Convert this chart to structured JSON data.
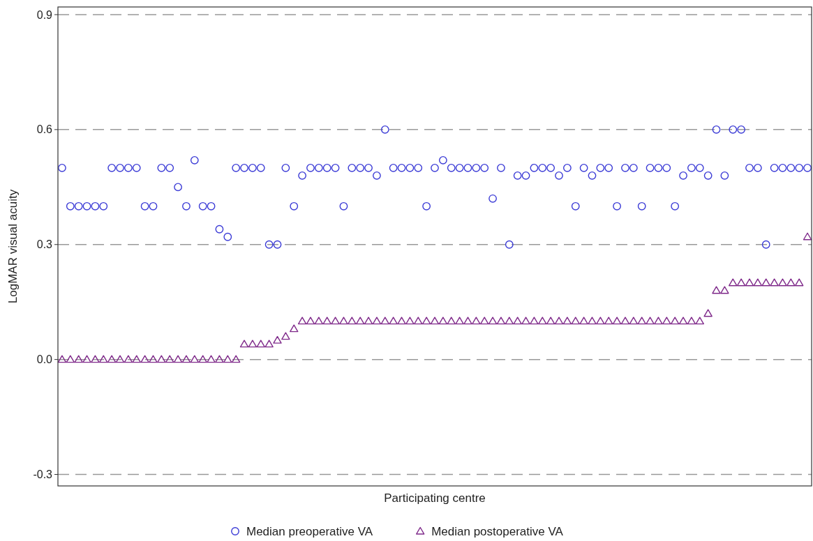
{
  "chart_data": {
    "type": "scatter",
    "xlabel": "Participating centre",
    "ylabel": "LogMAR visual acuity",
    "categories": [
      null,
      null,
      null,
      null,
      null,
      null,
      null,
      null,
      null,
      null,
      null,
      null,
      null,
      null,
      null,
      null,
      null,
      null,
      null,
      null,
      null,
      null,
      null,
      null,
      null,
      null,
      null,
      null,
      null,
      null,
      null,
      null,
      null,
      null,
      null,
      null,
      null,
      null,
      null,
      null,
      null,
      null,
      null,
      null,
      null,
      null,
      null,
      null,
      null,
      null,
      null,
      null,
      null,
      null,
      null,
      null,
      null,
      null,
      null,
      null,
      null,
      null,
      null,
      null,
      null,
      null,
      null,
      null,
      null,
      null,
      null,
      null,
      null,
      null,
      null,
      null,
      null,
      null,
      null,
      null,
      null,
      null,
      null,
      null,
      null,
      null,
      null,
      null,
      null,
      null,
      null
    ],
    "ylim": [
      -0.33,
      0.92
    ],
    "yticks": [
      -0.3,
      {
        "value": 0,
        "label": "0.0"
      },
      0.3,
      0.6,
      0.9
    ],
    "grid": "y",
    "legend": "bottom",
    "series": [
      {
        "name": "Median preoperative VA",
        "color": "#3b3bd6",
        "marker": "circle",
        "values": [
          0.5,
          0.4,
          0.4,
          0.4,
          0.4,
          0.4,
          0.5,
          0.5,
          0.5,
          0.5,
          0.4,
          0.4,
          0.5,
          0.5,
          0.45,
          0.4,
          0.52,
          0.4,
          0.4,
          0.34,
          0.32,
          0.5,
          0.5,
          0.5,
          0.5,
          0.3,
          0.3,
          0.5,
          0.4,
          0.48,
          0.5,
          0.5,
          0.5,
          0.5,
          0.4,
          0.5,
          0.5,
          0.5,
          0.48,
          0.6,
          0.5,
          0.5,
          0.5,
          0.5,
          0.4,
          0.5,
          0.52,
          0.5,
          0.5,
          0.5,
          0.5,
          0.5,
          0.42,
          0.5,
          0.3,
          0.48,
          0.48,
          0.5,
          0.5,
          0.5,
          0.48,
          0.5,
          0.4,
          0.5,
          0.48,
          0.5,
          0.5,
          0.4,
          0.5,
          0.5,
          0.4,
          0.5,
          0.5,
          0.5,
          0.4,
          0.48,
          0.5,
          0.5,
          0.48,
          0.6,
          0.48,
          0.6,
          0.6,
          0.5,
          0.5,
          0.3,
          0.5,
          0.5,
          0.5,
          0.5,
          0.5
        ]
      },
      {
        "name": "Median postoperative VA",
        "color": "#7f2a8a",
        "marker": "triangle",
        "values": [
          0,
          0,
          0,
          0,
          0,
          0,
          0,
          0,
          0,
          0,
          0,
          0,
          0,
          0,
          0,
          0,
          0,
          0,
          0,
          0,
          0,
          0,
          0.04,
          0.04,
          0.04,
          0.04,
          0.05,
          0.06,
          0.08,
          0.1,
          0.1,
          0.1,
          0.1,
          0.1,
          0.1,
          0.1,
          0.1,
          0.1,
          0.1,
          0.1,
          0.1,
          0.1,
          0.1,
          0.1,
          0.1,
          0.1,
          0.1,
          0.1,
          0.1,
          0.1,
          0.1,
          0.1,
          0.1,
          0.1,
          0.1,
          0.1,
          0.1,
          0.1,
          0.1,
          0.1,
          0.1,
          0.1,
          0.1,
          0.1,
          0.1,
          0.1,
          0.1,
          0.1,
          0.1,
          0.1,
          0.1,
          0.1,
          0.1,
          0.1,
          0.1,
          0.1,
          0.1,
          0.1,
          0.12,
          0.18,
          0.18,
          0.2,
          0.2,
          0.2,
          0.2,
          0.2,
          0.2,
          0.2,
          0.2,
          0.2,
          0.32
        ]
      }
    ]
  }
}
